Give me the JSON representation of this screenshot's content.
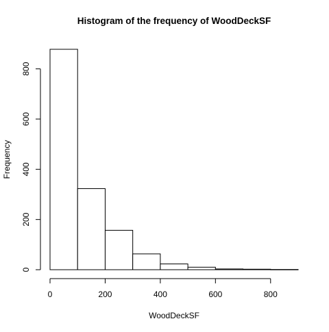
{
  "chart_data": {
    "type": "bar",
    "title": "Histogram of the frequency of WoodDeckSF",
    "xlabel": "WoodDeckSF",
    "ylabel": "Frequency",
    "bin_edges": [
      0,
      100,
      200,
      300,
      400,
      500,
      600,
      700,
      800,
      900
    ],
    "values": [
      878,
      323,
      157,
      63,
      23,
      10,
      3,
      2,
      1
    ],
    "xlim": [
      0,
      900
    ],
    "ylim": [
      0,
      878
    ],
    "x_ticks": [
      0,
      200,
      400,
      600,
      800
    ],
    "y_ticks": [
      0,
      200,
      400,
      600,
      800
    ],
    "grid": false,
    "bar_fill": "#ffffff",
    "bar_stroke": "#000000"
  }
}
